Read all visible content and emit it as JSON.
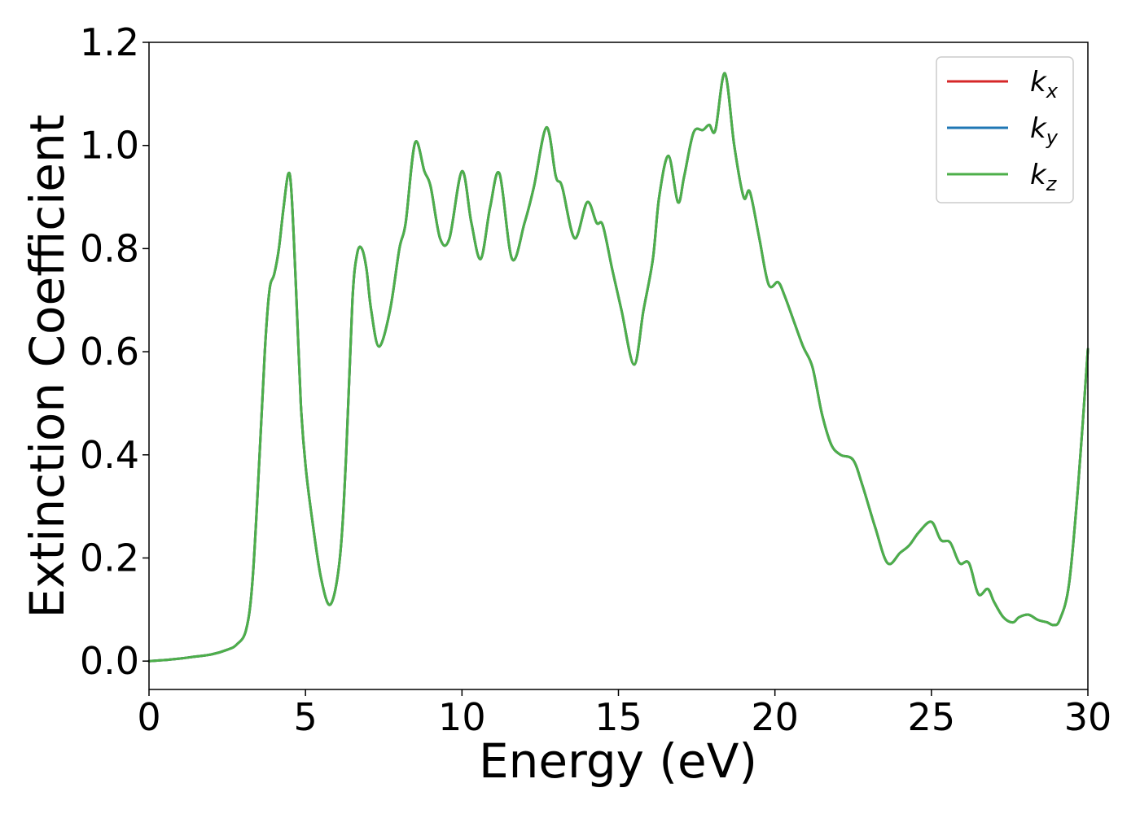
{
  "chart_data": {
    "type": "line",
    "title": "",
    "xlabel": "Energy (eV)",
    "ylabel": "Extinction Coefficient",
    "xlim": [
      0,
      30
    ],
    "ylim": [
      -0.055,
      1.2
    ],
    "xticks": [
      0,
      5,
      10,
      15,
      20,
      25,
      30
    ],
    "xtick_labels": [
      "0",
      "5",
      "10",
      "15",
      "20",
      "25",
      "30"
    ],
    "yticks": [
      0.0,
      0.2,
      0.4,
      0.6,
      0.8,
      1.0,
      1.2
    ],
    "ytick_labels": [
      "0.0",
      "0.2",
      "0.4",
      "0.6",
      "0.8",
      "1.0",
      "1.2"
    ],
    "grid": false,
    "legend_position": "top-right",
    "series": [
      {
        "name": "k",
        "subscript": "x",
        "color": "#d62728",
        "data_ref": "shared"
      },
      {
        "name": "k",
        "subscript": "y",
        "color": "#1f77b4",
        "data_ref": "shared"
      },
      {
        "name": "k",
        "subscript": "z",
        "color": "#4daf4a",
        "data_ref": "shared"
      }
    ],
    "x": [
      0,
      0.5,
      1,
      1.5,
      2,
      2.5,
      2.8,
      3.1,
      3.3,
      3.5,
      3.7,
      3.85,
      4.0,
      4.15,
      4.3,
      4.45,
      4.55,
      4.7,
      4.85,
      5.0,
      5.2,
      5.5,
      5.8,
      6.1,
      6.3,
      6.5,
      6.65,
      6.8,
      6.95,
      7.1,
      7.35,
      7.7,
      8.0,
      8.2,
      8.5,
      8.8,
      9.0,
      9.3,
      9.6,
      10.0,
      10.3,
      10.6,
      10.9,
      11.2,
      11.6,
      12.0,
      12.3,
      12.7,
      13.0,
      13.2,
      13.6,
      14.0,
      14.3,
      14.5,
      14.8,
      15.1,
      15.5,
      15.8,
      16.1,
      16.3,
      16.6,
      16.9,
      17.1,
      17.4,
      17.7,
      17.9,
      18.1,
      18.4,
      18.7,
      19.0,
      19.2,
      19.5,
      19.8,
      20.1,
      20.3,
      20.6,
      20.9,
      21.2,
      21.5,
      21.8,
      22.1,
      22.5,
      22.8,
      23.2,
      23.6,
      24.0,
      24.3,
      24.6,
      25.0,
      25.3,
      25.6,
      25.9,
      26.2,
      26.5,
      26.8,
      27.0,
      27.3,
      27.6,
      27.8,
      28.1,
      28.4,
      28.7,
      28.9,
      29.1,
      29.4,
      29.7,
      30.0
    ],
    "values": [
      0.0,
      0.002,
      0.005,
      0.009,
      0.013,
      0.022,
      0.032,
      0.06,
      0.15,
      0.36,
      0.6,
      0.72,
      0.75,
      0.8,
      0.88,
      0.945,
      0.91,
      0.72,
      0.5,
      0.38,
      0.28,
      0.16,
      0.11,
      0.2,
      0.4,
      0.7,
      0.79,
      0.8,
      0.76,
      0.68,
      0.61,
      0.68,
      0.8,
      0.85,
      1.005,
      0.95,
      0.92,
      0.82,
      0.82,
      0.95,
      0.85,
      0.78,
      0.88,
      0.945,
      0.78,
      0.85,
      0.92,
      1.035,
      0.94,
      0.92,
      0.82,
      0.89,
      0.85,
      0.845,
      0.76,
      0.68,
      0.575,
      0.68,
      0.78,
      0.9,
      0.98,
      0.89,
      0.94,
      1.025,
      1.03,
      1.04,
      1.03,
      1.14,
      1.0,
      0.9,
      0.91,
      0.82,
      0.73,
      0.735,
      0.71,
      0.66,
      0.61,
      0.57,
      0.48,
      0.42,
      0.4,
      0.39,
      0.34,
      0.26,
      0.19,
      0.21,
      0.225,
      0.25,
      0.27,
      0.235,
      0.23,
      0.19,
      0.19,
      0.13,
      0.14,
      0.115,
      0.085,
      0.075,
      0.085,
      0.09,
      0.08,
      0.075,
      0.07,
      0.08,
      0.15,
      0.35,
      0.605
    ]
  }
}
